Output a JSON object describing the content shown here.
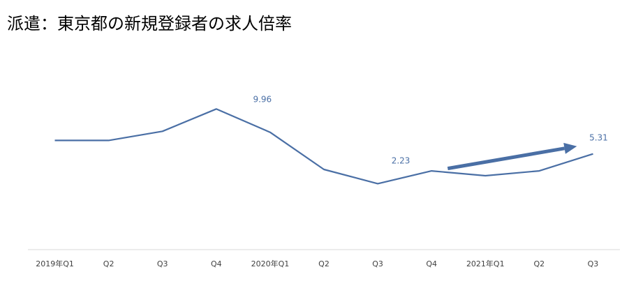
{
  "chart_data": {
    "type": "line",
    "title": "派遣：東京都の新規登録者の求人倍率",
    "categories": [
      "2019年Q1",
      "Q2",
      "Q3",
      "Q4",
      "2020年Q1",
      "Q2",
      "Q3",
      "Q4",
      "2021年Q1",
      "Q2",
      "Q3"
    ],
    "series": [
      {
        "values": [
          6.7,
          6.7,
          7.65,
          9.96,
          7.55,
          3.7,
          2.23,
          3.55,
          3.05,
          3.55,
          5.31
        ],
        "color": "#4a6fa5"
      }
    ],
    "data_labels": [
      {
        "index": 3,
        "text": "9.96"
      },
      {
        "index": 6,
        "text": "2.23"
      },
      {
        "index": 10,
        "text": "5.31"
      }
    ],
    "ylim": [
      -4.6,
      13.3
    ],
    "grid": false,
    "legend": "none",
    "annotations": [
      {
        "type": "arrow",
        "from": {
          "x": 7.3,
          "y": 3.8
        },
        "to": {
          "x": 9.7,
          "y": 6.1
        },
        "color": "#4a6fa5"
      }
    ]
  }
}
